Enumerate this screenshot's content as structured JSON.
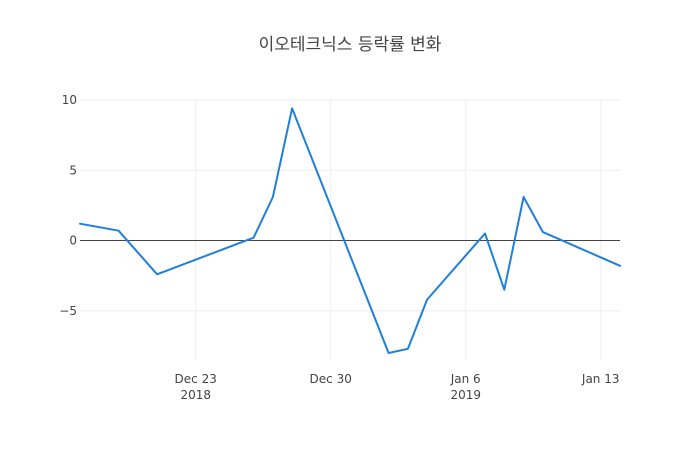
{
  "chart_data": {
    "type": "line",
    "title": "이오테크닉스 등락률 변화",
    "xlabel": "",
    "ylabel": "",
    "ylim": [
      -8.5,
      10
    ],
    "xlim": [
      "2018-12-17",
      "2019-01-14"
    ],
    "grid": true,
    "zero_line": true,
    "line_color": "#1f7fdc",
    "x_ticks": [
      {
        "date": "2018-12-23",
        "label": "Dec 23",
        "sublabel": "2018"
      },
      {
        "date": "2018-12-30",
        "label": "Dec 30",
        "sublabel": ""
      },
      {
        "date": "2019-01-06",
        "label": "Jan 6",
        "sublabel": "2019"
      },
      {
        "date": "2019-01-13",
        "label": "Jan 13",
        "sublabel": ""
      }
    ],
    "y_ticks": [
      {
        "value": 10,
        "label": "10"
      },
      {
        "value": 5,
        "label": "5"
      },
      {
        "value": 0,
        "label": "0"
      },
      {
        "value": -5,
        "label": "−5"
      }
    ],
    "series": [
      {
        "x": [
          "2018-12-17",
          "2018-12-19",
          "2018-12-21",
          "2018-12-26",
          "2018-12-27",
          "2018-12-28",
          "2019-01-02",
          "2019-01-03",
          "2019-01-04",
          "2019-01-07",
          "2019-01-08",
          "2019-01-09",
          "2019-01-10",
          "2019-01-14"
        ],
        "y": [
          1.2,
          0.7,
          -2.4,
          0.2,
          3.1,
          9.4,
          -8.0,
          -7.7,
          -4.2,
          0.5,
          -3.5,
          3.1,
          0.6,
          -1.8
        ]
      }
    ]
  }
}
